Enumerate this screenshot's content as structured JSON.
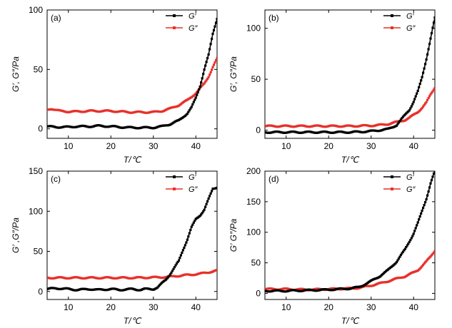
{
  "figure": {
    "panels": [
      "(a)",
      "(b)",
      "(c)",
      "(d)"
    ]
  },
  "chart_data": [
    {
      "type": "line",
      "panel_label": "(a)",
      "xlabel": "T/℃",
      "ylabel": "G′, G″/Pa",
      "xlim": [
        5,
        45
      ],
      "ylim": [
        -8,
        100
      ],
      "xticks": [
        10,
        20,
        30,
        40
      ],
      "yticks": [
        0,
        50,
        100
      ],
      "legend_position": "top-right",
      "series": [
        {
          "name": "G′",
          "color": "#000000",
          "x": [
            5,
            7,
            10,
            12,
            15,
            17,
            20,
            22,
            25,
            28,
            30,
            32,
            34,
            36,
            38,
            39,
            40,
            41,
            42,
            43,
            44,
            45
          ],
          "y": [
            2,
            1.5,
            1.5,
            2,
            2,
            2.5,
            2,
            1.5,
            1,
            1,
            1,
            2,
            4,
            7,
            13,
            18,
            26,
            36,
            50,
            62,
            80,
            93
          ]
        },
        {
          "name": "G″",
          "color": "#e8302a",
          "x": [
            5,
            6,
            8,
            10,
            12,
            15,
            17,
            20,
            22,
            25,
            28,
            30,
            32,
            34,
            36,
            38,
            40,
            41,
            42,
            43,
            44,
            45
          ],
          "y": [
            16,
            17,
            15,
            14.5,
            14.5,
            15,
            15,
            15,
            14.5,
            14,
            14,
            14,
            15,
            17,
            20,
            24,
            30,
            34,
            38,
            44,
            52,
            59
          ]
        }
      ]
    },
    {
      "type": "line",
      "panel_label": "(b)",
      "xlabel": "T/℃",
      "ylabel": "G′, G″/Pa",
      "xlim": [
        5,
        45
      ],
      "ylim": [
        -8,
        118
      ],
      "xticks": [
        10,
        20,
        30,
        40
      ],
      "yticks": [
        0,
        50,
        100
      ],
      "legend_position": "top-right",
      "series": [
        {
          "name": "G′",
          "color": "#000000",
          "x": [
            5,
            10,
            15,
            20,
            25,
            28,
            30,
            32,
            34,
            35,
            36,
            37,
            38,
            39,
            40,
            41,
            42,
            43,
            44,
            45
          ],
          "y": [
            -2,
            -2,
            -2,
            -2,
            -2,
            -1.5,
            -1,
            0,
            1,
            3,
            5,
            10,
            15,
            20,
            28,
            38,
            52,
            70,
            90,
            110
          ]
        },
        {
          "name": "G″",
          "color": "#e8302a",
          "x": [
            5,
            10,
            15,
            20,
            25,
            30,
            32,
            34,
            36,
            37,
            38,
            39,
            40,
            41,
            42,
            43,
            44,
            45
          ],
          "y": [
            4,
            4,
            4,
            4,
            4,
            4.5,
            5,
            6,
            8,
            9,
            10,
            12,
            15,
            18,
            22,
            27,
            35,
            42
          ]
        }
      ]
    },
    {
      "type": "line",
      "panel_label": "(c)",
      "xlabel": "T/℃",
      "ylabel": "G′ ,G″/Pa",
      "xlim": [
        5,
        45
      ],
      "ylim": [
        -10,
        150
      ],
      "xticks": [
        10,
        20,
        30,
        40
      ],
      "yticks": [
        0,
        50,
        100,
        150
      ],
      "legend_position": "top-right",
      "series": [
        {
          "name": "G′",
          "color": "#000000",
          "x": [
            5,
            7,
            10,
            12,
            15,
            17,
            20,
            22,
            25,
            27,
            28,
            30,
            31,
            32,
            33,
            34,
            35,
            36,
            37,
            38,
            39,
            40,
            41,
            42,
            43,
            44,
            45
          ],
          "y": [
            3,
            4,
            3,
            2,
            3,
            2,
            3,
            2,
            3,
            2,
            3,
            3,
            5,
            10,
            15,
            22,
            30,
            38,
            52,
            65,
            80,
            90,
            95,
            102,
            115,
            128,
            130
          ]
        },
        {
          "name": "G″",
          "color": "#e8302a",
          "x": [
            5,
            10,
            15,
            20,
            25,
            30,
            33,
            35,
            37,
            39,
            41,
            43,
            45
          ],
          "y": [
            17,
            17,
            17,
            17,
            17,
            17.5,
            18,
            19,
            20,
            21,
            22,
            24,
            26
          ]
        }
      ]
    },
    {
      "type": "line",
      "panel_label": "(d)",
      "xlabel": "T/℃",
      "ylabel": "G′ G″/Pa",
      "xlim": [
        5,
        45
      ],
      "ylim": [
        -10,
        200
      ],
      "xticks": [
        10,
        20,
        30,
        40
      ],
      "yticks": [
        0,
        50,
        100,
        150,
        200
      ],
      "legend_position": "top-right",
      "series": [
        {
          "name": "G′",
          "color": "#000000",
          "x": [
            5,
            10,
            15,
            20,
            25,
            27,
            28,
            30,
            32,
            34,
            35,
            36,
            37,
            38,
            39,
            40,
            41,
            42,
            43,
            44,
            45
          ],
          "y": [
            4,
            4,
            5,
            6,
            8,
            10,
            13,
            20,
            28,
            38,
            45,
            52,
            62,
            72,
            85,
            98,
            115,
            135,
            155,
            180,
            200
          ]
        },
        {
          "name": "G″",
          "color": "#e8302a",
          "x": [
            5,
            10,
            15,
            20,
            25,
            27,
            28,
            30,
            32,
            34,
            36,
            38,
            40,
            41,
            42,
            43,
            44,
            45
          ],
          "y": [
            7,
            7,
            6,
            7,
            8,
            9,
            10,
            13,
            16,
            20,
            24,
            28,
            34,
            38,
            45,
            52,
            60,
            70
          ]
        }
      ]
    }
  ]
}
